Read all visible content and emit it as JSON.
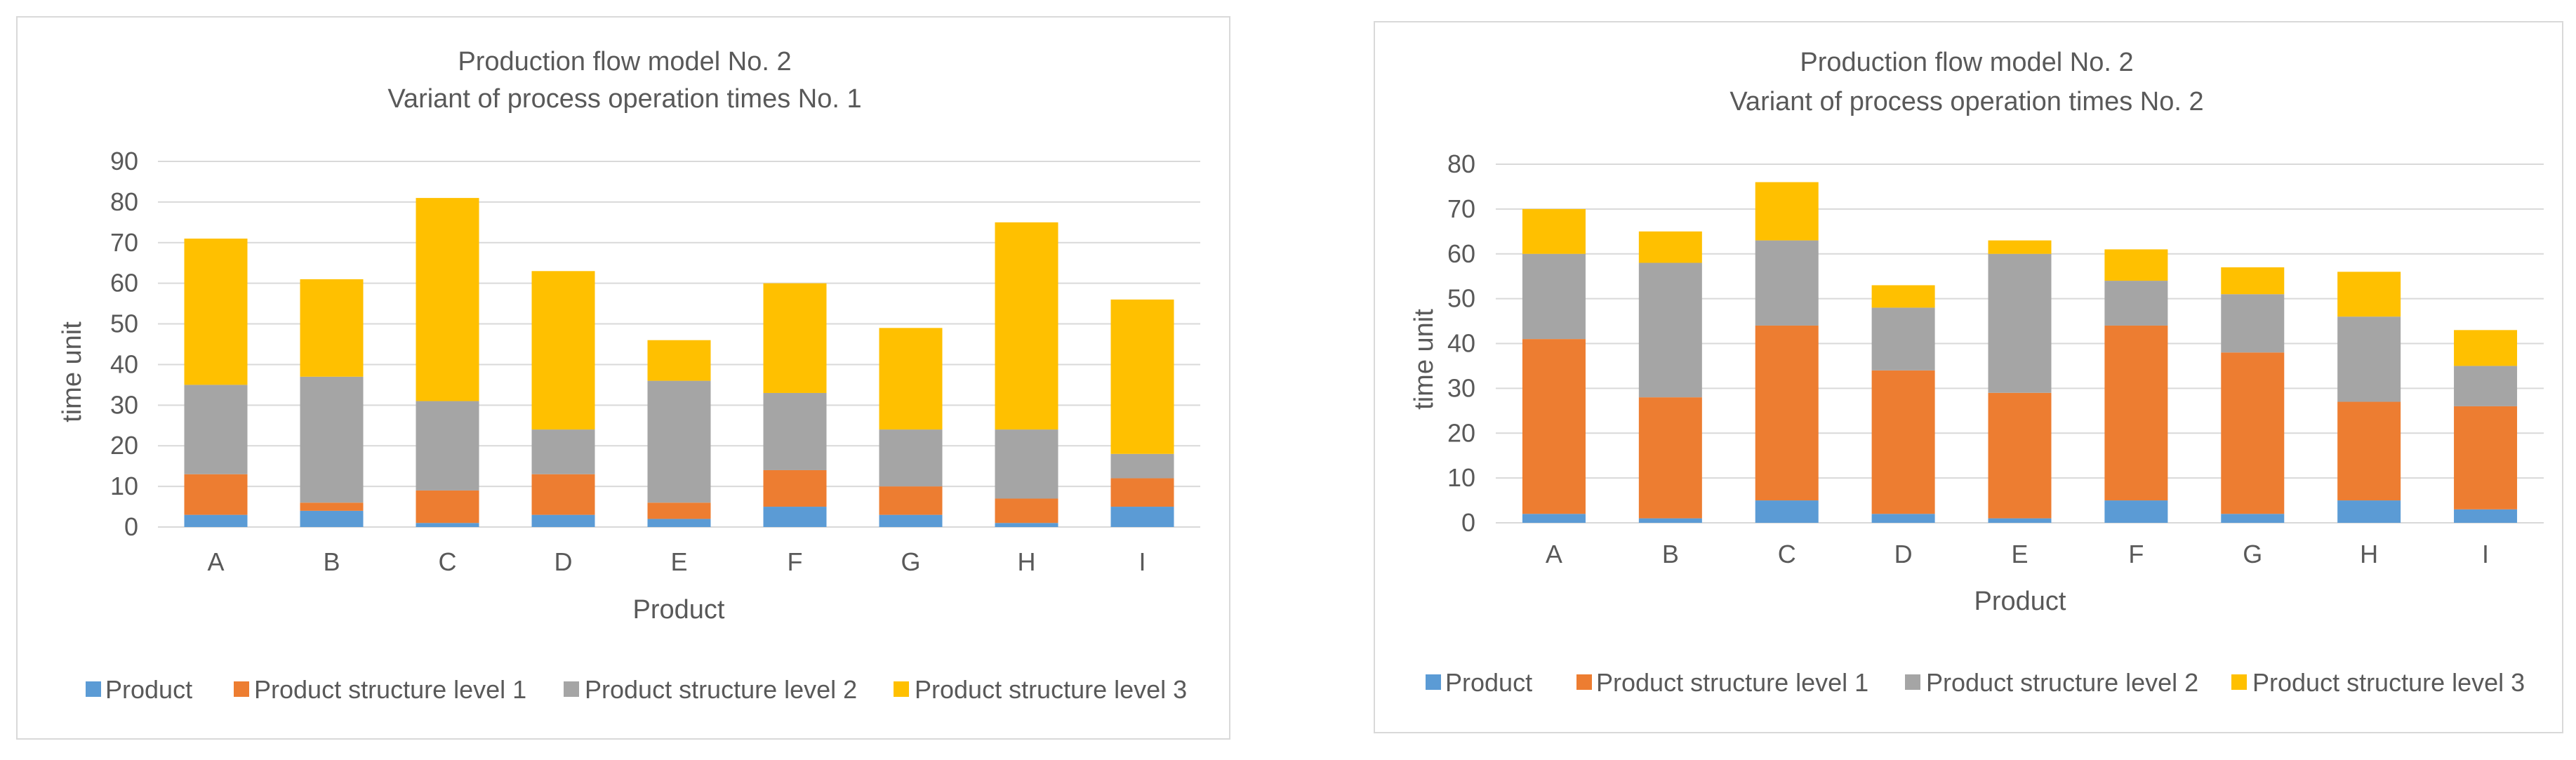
{
  "colors": {
    "product": "#5b9bd5",
    "level1": "#ed7d31",
    "level2": "#a5a5a5",
    "level3": "#ffc000",
    "grid": "#d9d9d9",
    "text": "#595959"
  },
  "chart_data": [
    {
      "type": "bar",
      "stacked": true,
      "title_lines": [
        "Production flow model No. 2",
        "Variant of process operation times No. 1"
      ],
      "xlabel": "Product",
      "ylabel": "time unit",
      "ylim": [
        0,
        90
      ],
      "yticks": [
        0,
        10,
        20,
        30,
        40,
        50,
        60,
        70,
        80,
        90
      ],
      "categories": [
        "A",
        "B",
        "C",
        "D",
        "E",
        "F",
        "G",
        "H",
        "I"
      ],
      "legend_position": "bottom",
      "series": [
        {
          "name": "Product",
          "color_key": "product",
          "values": [
            3,
            4,
            1,
            3,
            2,
            5,
            3,
            1,
            5
          ]
        },
        {
          "name": "Product structure level 1",
          "color_key": "level1",
          "values": [
            10,
            2,
            8,
            10,
            4,
            9,
            7,
            6,
            7
          ]
        },
        {
          "name": "Product structure level 2",
          "color_key": "level2",
          "values": [
            22,
            31,
            22,
            11,
            30,
            19,
            14,
            17,
            6
          ]
        },
        {
          "name": "Product structure level 3",
          "color_key": "level3",
          "values": [
            36,
            24,
            50,
            39,
            10,
            27,
            25,
            51,
            38
          ]
        }
      ]
    },
    {
      "type": "bar",
      "stacked": true,
      "title_lines": [
        "Production flow model No. 2",
        "Variant of process operation times No. 2"
      ],
      "xlabel": "Product",
      "ylabel": "time unit",
      "ylim": [
        0,
        80
      ],
      "yticks": [
        0,
        10,
        20,
        30,
        40,
        50,
        60,
        70,
        80
      ],
      "categories": [
        "A",
        "B",
        "C",
        "D",
        "E",
        "F",
        "G",
        "H",
        "I"
      ],
      "legend_position": "bottom",
      "series": [
        {
          "name": "Product",
          "color_key": "product",
          "values": [
            2,
            1,
            5,
            2,
            1,
            5,
            2,
            5,
            3
          ]
        },
        {
          "name": "Product structure level 1",
          "color_key": "level1",
          "values": [
            39,
            27,
            39,
            32,
            28,
            39,
            36,
            22,
            23
          ]
        },
        {
          "name": "Product structure level 2",
          "color_key": "level2",
          "values": [
            19,
            30,
            19,
            14,
            31,
            10,
            13,
            19,
            9
          ]
        },
        {
          "name": "Product structure level 3",
          "color_key": "level3",
          "values": [
            10,
            7,
            13,
            5,
            3,
            7,
            6,
            10,
            8
          ]
        }
      ]
    }
  ]
}
